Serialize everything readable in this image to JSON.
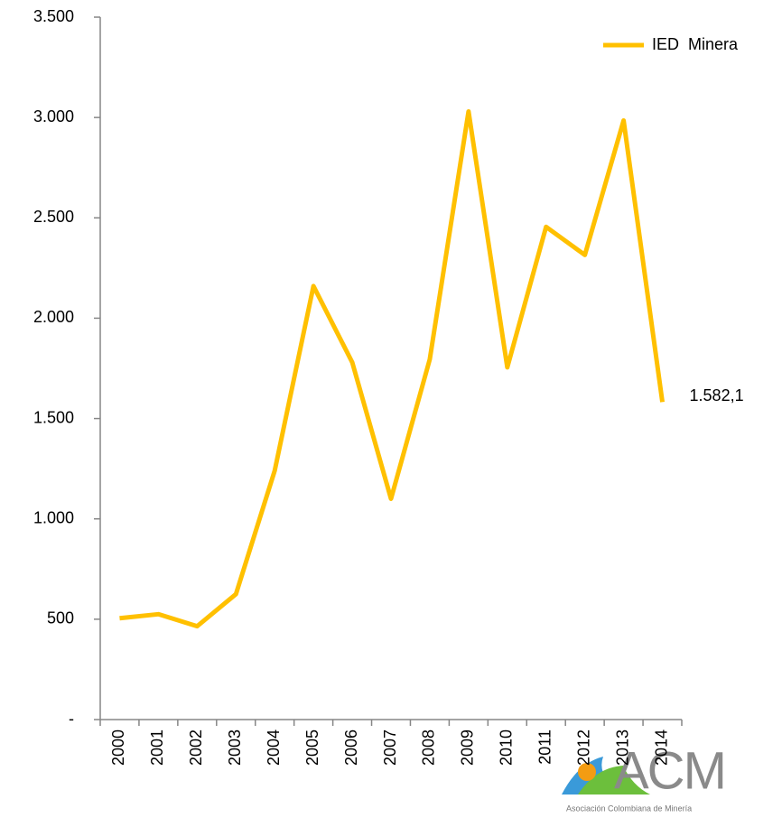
{
  "chart_data": {
    "type": "line",
    "categories": [
      "2000",
      "2001",
      "2002",
      "2003",
      "2004",
      "2005",
      "2006",
      "2007",
      "2008",
      "2009",
      "2010",
      "2011",
      "2012",
      "2013",
      "2014"
    ],
    "series": [
      {
        "name": "IED  Minera",
        "color": "#ffc000",
        "values": [
          505,
          525,
          465,
          625,
          1240,
          2160,
          1780,
          1100,
          1795,
          3030,
          1755,
          2455,
          2315,
          2985,
          1582.1
        ],
        "value_labels": [
          null,
          null,
          null,
          null,
          null,
          null,
          null,
          null,
          null,
          null,
          null,
          null,
          null,
          null,
          "1.582,1"
        ]
      }
    ],
    "ylim": [
      0,
      3500
    ],
    "yticks": [
      {
        "value": 0,
        "label": "-"
      },
      500,
      {
        "value": 1000,
        "label": "1.000"
      },
      {
        "value": 1500,
        "label": "1.500"
      },
      {
        "value": 2000,
        "label": "2.000"
      },
      {
        "value": 2500,
        "label": "2.500"
      },
      {
        "value": 3000,
        "label": "3.000"
      },
      {
        "value": 3500,
        "label": "3.500"
      }
    ],
    "grid": false,
    "legend": "top right"
  },
  "logo": {
    "text": "ACM",
    "subtitle": "Asociación Colombiana de Minería"
  }
}
